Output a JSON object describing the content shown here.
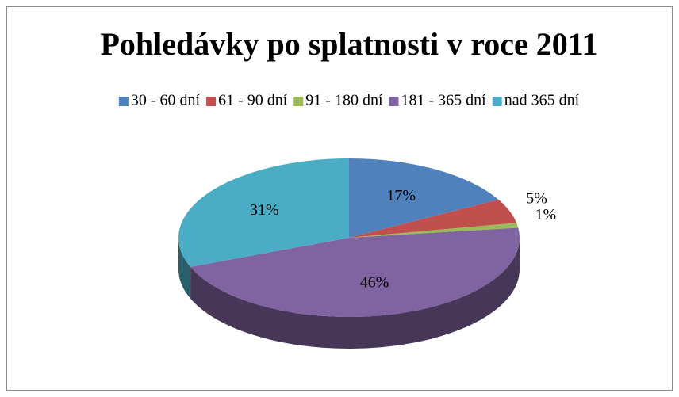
{
  "chart_data": {
    "type": "pie",
    "title": "Pohledávky po splatnosti v roce 2011",
    "categories": [
      "30 - 60 dní",
      "61 - 90 dní",
      "91 - 180 dní",
      "181 - 365 dní",
      "nad 365 dní"
    ],
    "values": [
      17,
      5,
      1,
      46,
      31
    ],
    "value_labels": [
      "17%",
      "5%",
      "1%",
      "46%",
      "31%"
    ],
    "colors": [
      "#4f81bd",
      "#c0504d",
      "#9bbb59",
      "#8064a2",
      "#4bacc6"
    ],
    "legend": "top"
  }
}
